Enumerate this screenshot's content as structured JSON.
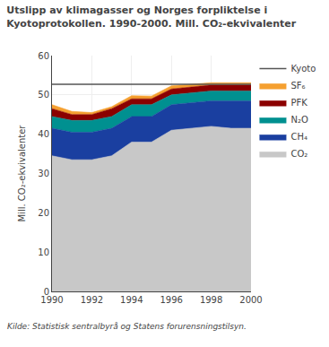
{
  "chart_data": {
    "type": "area",
    "stacked": true,
    "title": "Utslipp av klimagasser og Norges forpliktelse i\nKyotoprotokollen. 1990-2000. Mill. CO₂-ekvivalenter",
    "ylabel": "Mill. CO₂-ekvivalenter",
    "x": [
      1990,
      1991,
      1992,
      1993,
      1994,
      1995,
      1996,
      1997,
      1998,
      1999,
      2000
    ],
    "series": [
      {
        "name": "CO₂",
        "color": "#c8c8c8",
        "values": [
          34.5,
          33.5,
          33.5,
          34.5,
          38.0,
          38.0,
          41.0,
          41.5,
          42.0,
          41.5,
          41.5
        ]
      },
      {
        "name": "CH₄",
        "color": "#1a3fa0",
        "values": [
          7.0,
          7.0,
          7.0,
          7.0,
          6.5,
          6.5,
          6.5,
          6.5,
          6.5,
          7.0,
          7.0
        ]
      },
      {
        "name": "N₂O",
        "color": "#009090",
        "values": [
          3.0,
          3.0,
          3.0,
          3.0,
          3.0,
          3.0,
          2.5,
          2.5,
          2.5,
          2.5,
          2.5
        ]
      },
      {
        "name": "PFK",
        "color": "#8b0000",
        "values": [
          2.0,
          1.5,
          1.5,
          2.0,
          1.5,
          1.5,
          1.5,
          1.5,
          1.5,
          1.5,
          1.5
        ]
      },
      {
        "name": "SF₆",
        "color": "#f5a030",
        "values": [
          1.0,
          0.8,
          0.5,
          0.5,
          0.8,
          0.7,
          0.8,
          0.7,
          0.6,
          0.6,
          0.6
        ]
      },
      {
        "name": "Kyoto",
        "type": "line",
        "color": "#555555",
        "values": [
          52.7,
          52.7,
          52.7,
          52.7,
          52.7,
          52.7,
          52.7,
          52.7,
          52.7,
          52.7,
          52.7
        ]
      }
    ],
    "xlim": [
      1990,
      2000
    ],
    "xticks": [
      1990,
      1992,
      1994,
      1996,
      1998,
      2000
    ],
    "ylim": [
      0,
      60
    ],
    "yticks": [
      0,
      10,
      20,
      30,
      40,
      50,
      60
    ],
    "grid": true,
    "legend": "right",
    "annotations": [
      "Kilde: Statistisk sentralbyrå og Statens forurensningstilsyn."
    ]
  }
}
